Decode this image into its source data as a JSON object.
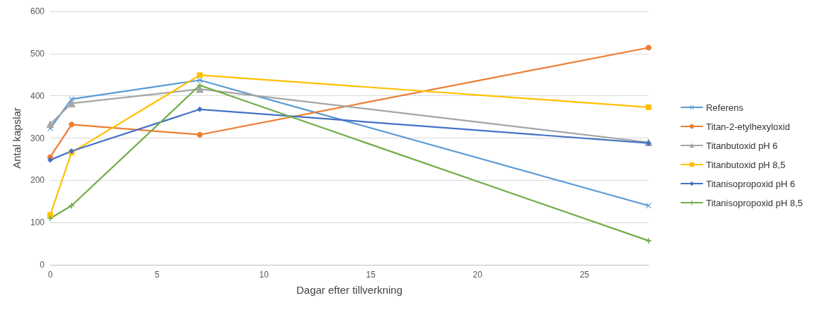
{
  "chart_data": {
    "type": "line",
    "xlabel": "Dagar efter tillverkning",
    "ylabel": "Antal kapslar",
    "x": [
      0,
      1,
      7,
      28
    ],
    "xlim": [
      0,
      28
    ],
    "xticks": [
      0,
      5,
      10,
      15,
      20,
      25
    ],
    "ylim": [
      0,
      600
    ],
    "yticks": [
      0,
      100,
      200,
      300,
      400,
      500,
      600
    ],
    "grid": "y",
    "legend": "right",
    "series": [
      {
        "name": "Referens",
        "color": "#5b9bd5",
        "marker": "cross",
        "values": [
          323,
          392,
          437,
          140
        ]
      },
      {
        "name": "Titan-2-etylhexyloxid",
        "color": "#ed7d31",
        "marker": "circle",
        "values": [
          255,
          332,
          308,
          514
        ]
      },
      {
        "name": "Titanbutoxid pH 6",
        "color": "#a5a5a5",
        "marker": "triangle",
        "values": [
          333,
          382,
          416,
          290
        ]
      },
      {
        "name": "Titanbutoxid pH 8,5",
        "color": "#ffc000",
        "marker": "square",
        "values": [
          118,
          266,
          449,
          373
        ]
      },
      {
        "name": "Titanisopropoxid pH 6",
        "color": "#4472c4",
        "marker": "diamond",
        "values": [
          248,
          269,
          368,
          288
        ]
      },
      {
        "name": "Titanisopropoxid pH 8,5",
        "color": "#70ad47",
        "marker": "plus",
        "values": [
          110,
          140,
          425,
          57
        ]
      }
    ]
  }
}
